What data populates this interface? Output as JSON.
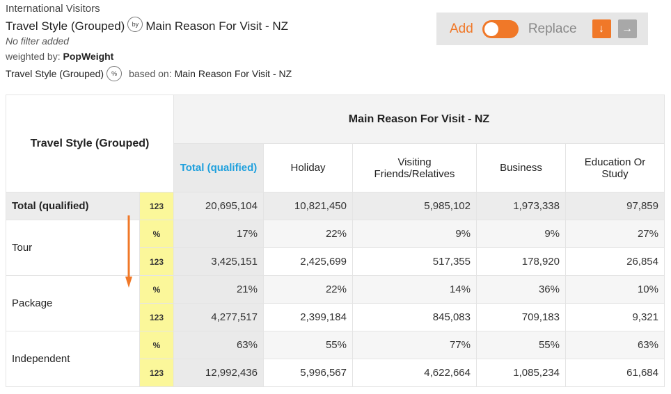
{
  "header": {
    "source": "International Visitors",
    "row_var": "Travel Style (Grouped)",
    "by_badge": "by",
    "col_var": "Main Reason For Visit - NZ",
    "filter": "No filter added",
    "weighted_prefix": "weighted by:",
    "weighted_var": "PopWeight",
    "pct_row_var": "Travel Style (Grouped)",
    "pct_badge": "%",
    "based_on": "based on:",
    "based_var": "Main Reason For Visit - NZ"
  },
  "toggle": {
    "add_label": "Add",
    "replace_label": "Replace",
    "state": "add",
    "down_icon": "↓",
    "right_icon": "→",
    "accent": "#f07828"
  },
  "table": {
    "corner_label": "Travel Style (Grouped)",
    "banner": "Main Reason For Visit - NZ",
    "columns": [
      "Total (qualified)",
      "Holiday",
      "Visiting Friends/Relatives",
      "Business",
      "Education Or Study"
    ],
    "total_row": {
      "label": "Total (qualified)",
      "stat": "123",
      "values": [
        "20,695,104",
        "10,821,450",
        "5,985,102",
        "1,973,338",
        "97,859"
      ]
    },
    "groups": [
      {
        "label": "Tour",
        "pct_stat": "%",
        "pct": [
          "17%",
          "22%",
          "9%",
          "9%",
          "27%"
        ],
        "cnt_stat": "123",
        "cnt": [
          "3,425,151",
          "2,425,699",
          "517,355",
          "178,920",
          "26,854"
        ]
      },
      {
        "label": "Package",
        "pct_stat": "%",
        "pct": [
          "21%",
          "22%",
          "14%",
          "36%",
          "10%"
        ],
        "cnt_stat": "123",
        "cnt": [
          "4,277,517",
          "2,399,184",
          "845,083",
          "709,183",
          "9,321"
        ]
      },
      {
        "label": "Independent",
        "pct_stat": "%",
        "pct": [
          "63%",
          "55%",
          "77%",
          "55%",
          "63%"
        ],
        "cnt_stat": "123",
        "cnt": [
          "12,992,436",
          "5,996,567",
          "4,622,664",
          "1,085,234",
          "61,684"
        ]
      }
    ]
  },
  "colors": {
    "total_header": "#1fa0dd",
    "stat_column": "#fbf79a",
    "arrow": "#f07828"
  }
}
